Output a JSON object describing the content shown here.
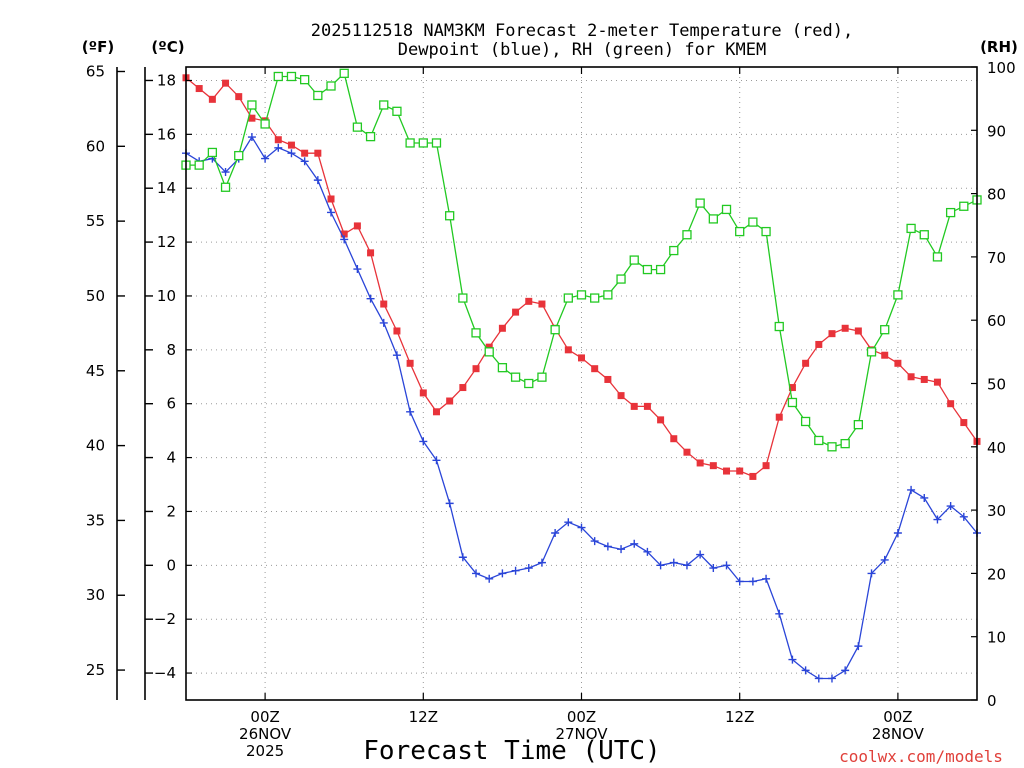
{
  "chart_data": {
    "type": "line",
    "title_lines": [
      "2025112518 NAM3KM Forecast 2-meter Temperature (red),",
      "Dewpoint (blue), RH (green) for KMEM"
    ],
    "xlabel": "Forecast Time (UTC)",
    "credit": "coolwx.com/models",
    "units": {
      "fahrenheit": "(ºF)",
      "celsius": "(ºC)",
      "rh": "(RH)"
    },
    "x_range_hours": [
      -6,
      54
    ],
    "x_ticks": [
      {
        "hour": 0,
        "lines": [
          "00Z",
          "26NOV",
          "2025"
        ]
      },
      {
        "hour": 12,
        "lines": [
          "12Z"
        ]
      },
      {
        "hour": 24,
        "lines": [
          "00Z",
          "27NOV"
        ]
      },
      {
        "hour": 36,
        "lines": [
          "12Z"
        ]
      },
      {
        "hour": 48,
        "lines": [
          "00Z",
          "28NOV"
        ]
      }
    ],
    "celsius_axis": {
      "range": [
        -5,
        18.5
      ],
      "ticks": [
        -4,
        -2,
        0,
        2,
        4,
        6,
        8,
        10,
        12,
        14,
        16,
        18
      ],
      "labels": [
        "−4",
        "−2",
        "0",
        "2",
        "4",
        "6",
        "8",
        "10",
        "12",
        "14",
        "16",
        "18"
      ]
    },
    "fahrenheit_axis": {
      "ticks": [
        25,
        30,
        35,
        40,
        45,
        50,
        55,
        60,
        65
      ],
      "labels": [
        "25",
        "30",
        "35",
        "40",
        "45",
        "50",
        "55",
        "60",
        "65"
      ]
    },
    "rh_axis": {
      "range": [
        0,
        100
      ],
      "ticks": [
        0,
        10,
        20,
        30,
        40,
        50,
        60,
        70,
        80,
        90,
        100
      ],
      "labels": [
        "0",
        "10",
        "20",
        "30",
        "40",
        "50",
        "60",
        "70",
        "80",
        "90",
        "100"
      ]
    },
    "series": [
      {
        "name": "Temperature (°C)",
        "color": "#e8333a",
        "marker": "filled-square",
        "axis": "celsius",
        "x": [
          -6,
          -5,
          -4,
          -3,
          -2,
          -1,
          0,
          1,
          2,
          3,
          4,
          5,
          6,
          7,
          8,
          9,
          10,
          11,
          12,
          13,
          14,
          15,
          16,
          17,
          18,
          19,
          20,
          21,
          22,
          23,
          24,
          25,
          26,
          27,
          28,
          29,
          30,
          31,
          32,
          33,
          34,
          35,
          36,
          37,
          38,
          39,
          40,
          41,
          42,
          43,
          44,
          45,
          46,
          47,
          48,
          49,
          50,
          51,
          52,
          53,
          54
        ],
        "values": [
          18.1,
          17.7,
          17.3,
          17.9,
          17.4,
          16.6,
          16.5,
          15.8,
          15.6,
          15.3,
          15.3,
          13.6,
          12.3,
          12.6,
          11.6,
          9.7,
          8.7,
          7.5,
          6.4,
          5.7,
          6.1,
          6.6,
          7.3,
          8.1,
          8.8,
          9.4,
          9.8,
          9.7,
          8.8,
          8.0,
          7.7,
          7.3,
          6.9,
          6.3,
          5.9,
          5.9,
          5.4,
          4.7,
          4.2,
          3.8,
          3.7,
          3.5,
          3.5,
          3.3,
          3.7,
          5.5,
          6.6,
          7.5,
          8.2,
          8.6,
          8.8,
          8.7,
          8.0,
          7.8,
          7.5,
          7.0,
          6.9,
          6.8,
          6.0,
          5.3,
          4.6
        ]
      },
      {
        "name": "Dewpoint (°C)",
        "color": "#2a45d8",
        "marker": "plus",
        "axis": "celsius",
        "x": [
          -6,
          -5,
          -4,
          -3,
          -2,
          -1,
          0,
          1,
          2,
          3,
          4,
          5,
          6,
          7,
          8,
          9,
          10,
          11,
          12,
          13,
          14,
          15,
          16,
          17,
          18,
          19,
          20,
          21,
          22,
          23,
          24,
          25,
          26,
          27,
          28,
          29,
          30,
          31,
          32,
          33,
          34,
          35,
          36,
          37,
          38,
          39,
          40,
          41,
          42,
          43,
          44,
          45,
          46,
          47,
          48,
          49,
          50,
          51,
          52,
          53,
          54
        ],
        "values": [
          15.3,
          15.0,
          15.1,
          14.6,
          15.1,
          15.9,
          15.1,
          15.5,
          15.3,
          15.0,
          14.3,
          13.1,
          12.1,
          11.0,
          9.9,
          9.0,
          7.8,
          5.7,
          4.6,
          3.9,
          2.3,
          0.3,
          -0.3,
          -0.5,
          -0.3,
          -0.2,
          -0.1,
          0.1,
          1.2,
          1.6,
          1.4,
          0.9,
          0.7,
          0.6,
          0.8,
          0.5,
          0.0,
          0.1,
          0.0,
          0.4,
          -0.1,
          0.0,
          -0.6,
          -0.6,
          -0.5,
          -1.8,
          -3.5,
          -3.9,
          -4.2,
          -4.2,
          -3.9,
          -3.0,
          -0.3,
          0.2,
          1.2,
          2.8,
          2.5,
          1.7,
          2.2,
          1.8,
          1.2
        ]
      },
      {
        "name": "Relative Humidity (%)",
        "color": "#22c922",
        "marker": "open-square",
        "axis": "rh",
        "x": [
          -6,
          -5,
          -4,
          -3,
          -2,
          -1,
          0,
          1,
          2,
          3,
          4,
          5,
          6,
          7,
          8,
          9,
          10,
          11,
          12,
          13,
          14,
          15,
          16,
          17,
          18,
          19,
          20,
          21,
          22,
          23,
          24,
          25,
          26,
          27,
          28,
          29,
          30,
          31,
          32,
          33,
          34,
          35,
          36,
          37,
          38,
          39,
          40,
          41,
          42,
          43,
          44,
          45,
          46,
          47,
          48,
          49,
          50,
          51,
          52,
          53,
          54
        ],
        "values": [
          84.5,
          84.5,
          86.5,
          81,
          86,
          94,
          91,
          98.5,
          98.5,
          98,
          95.5,
          97,
          99,
          90.5,
          89,
          94,
          93,
          88,
          88,
          88,
          76.5,
          63.5,
          58,
          55,
          52.5,
          51,
          50,
          51,
          58.5,
          63.5,
          64,
          63.5,
          64,
          66.5,
          69.5,
          68,
          68,
          71,
          73.5,
          78.5,
          76,
          77.5,
          74,
          75.5,
          74,
          59,
          47,
          44,
          41,
          40,
          40.5,
          43.5,
          55,
          58.5,
          64,
          74.5,
          73.5,
          70,
          77,
          78,
          79
        ]
      }
    ]
  }
}
